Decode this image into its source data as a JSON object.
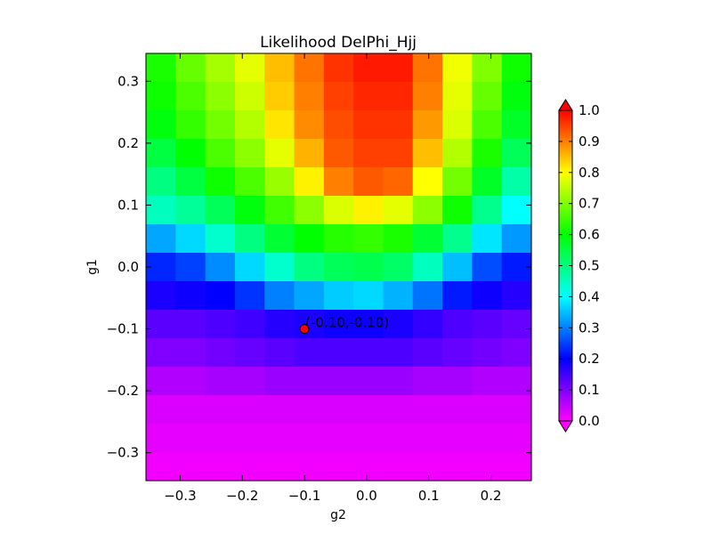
{
  "chart_data": {
    "type": "heatmap",
    "title": "Likelihood DelPhi_Hjj",
    "xlabel": "g2",
    "ylabel": "g1",
    "xlim": [
      -0.355,
      0.265
    ],
    "ylim": [
      -0.345,
      0.345
    ],
    "x_ticks": [
      -0.3,
      -0.2,
      -0.1,
      0.0,
      0.1,
      0.2
    ],
    "x_tick_labels": [
      "−0.3",
      "−0.2",
      "−0.1",
      "0.0",
      "0.1",
      "0.2"
    ],
    "y_ticks": [
      -0.3,
      -0.2,
      -0.1,
      0.0,
      0.1,
      0.2,
      0.3
    ],
    "y_tick_labels": [
      "−0.3",
      "−0.2",
      "−0.1",
      "0.0",
      "0.1",
      "0.2",
      "0.3"
    ],
    "cols": 13,
    "rows": 15,
    "colormap": "gist_rainbow_r",
    "colorbar": {
      "range": [
        0.0,
        1.0
      ],
      "ticks": [
        0.0,
        0.1,
        0.2,
        0.3,
        0.4,
        0.5,
        0.6,
        0.7,
        0.8,
        0.9,
        1.0
      ],
      "tick_labels": [
        "0.0",
        "0.1",
        "0.2",
        "0.3",
        "0.4",
        "0.5",
        "0.6",
        "0.7",
        "0.8",
        "0.9",
        "1.0"
      ],
      "extend": "both"
    },
    "values": [
      [
        0.62,
        0.68,
        0.73,
        0.78,
        0.85,
        0.91,
        0.96,
        0.98,
        0.98,
        0.91,
        0.79,
        0.7,
        0.61
      ],
      [
        0.61,
        0.66,
        0.71,
        0.76,
        0.84,
        0.9,
        0.95,
        0.97,
        0.97,
        0.9,
        0.78,
        0.68,
        0.59
      ],
      [
        0.59,
        0.64,
        0.69,
        0.74,
        0.82,
        0.89,
        0.94,
        0.96,
        0.96,
        0.88,
        0.77,
        0.66,
        0.57
      ],
      [
        0.55,
        0.6,
        0.66,
        0.71,
        0.78,
        0.86,
        0.93,
        0.95,
        0.95,
        0.85,
        0.74,
        0.62,
        0.53
      ],
      [
        0.5,
        0.55,
        0.61,
        0.66,
        0.72,
        0.81,
        0.9,
        0.93,
        0.92,
        0.8,
        0.69,
        0.57,
        0.47
      ],
      [
        0.45,
        0.48,
        0.53,
        0.59,
        0.65,
        0.71,
        0.77,
        0.81,
        0.78,
        0.71,
        0.61,
        0.49,
        0.4
      ],
      [
        0.33,
        0.37,
        0.44,
        0.5,
        0.56,
        0.6,
        0.63,
        0.64,
        0.62,
        0.56,
        0.49,
        0.38,
        0.32
      ],
      [
        0.23,
        0.25,
        0.31,
        0.37,
        0.44,
        0.5,
        0.53,
        0.54,
        0.52,
        0.45,
        0.35,
        0.26,
        0.22
      ],
      [
        0.18,
        0.19,
        0.2,
        0.24,
        0.3,
        0.33,
        0.36,
        0.37,
        0.34,
        0.29,
        0.22,
        0.19,
        0.17
      ],
      [
        0.13,
        0.13,
        0.14,
        0.15,
        0.17,
        0.18,
        0.19,
        0.19,
        0.18,
        0.16,
        0.14,
        0.13,
        0.12
      ],
      [
        0.1,
        0.1,
        0.11,
        0.12,
        0.13,
        0.14,
        0.14,
        0.14,
        0.14,
        0.13,
        0.12,
        0.11,
        0.1
      ],
      [
        0.06,
        0.06,
        0.07,
        0.07,
        0.08,
        0.08,
        0.08,
        0.08,
        0.08,
        0.07,
        0.07,
        0.06,
        0.06
      ],
      [
        0.03,
        0.03,
        0.03,
        0.03,
        0.03,
        0.03,
        0.03,
        0.03,
        0.03,
        0.03,
        0.03,
        0.03,
        0.03
      ],
      [
        0.02,
        0.02,
        0.02,
        0.02,
        0.02,
        0.02,
        0.02,
        0.02,
        0.02,
        0.02,
        0.02,
        0.02,
        0.02
      ],
      [
        0.01,
        0.01,
        0.01,
        0.01,
        0.01,
        0.01,
        0.01,
        0.01,
        0.01,
        0.01,
        0.01,
        0.01,
        0.01
      ]
    ],
    "annotation": {
      "x": -0.1,
      "y": -0.1,
      "label": "(-0.10,-0.10)",
      "marker_color": "#ff0000"
    }
  }
}
